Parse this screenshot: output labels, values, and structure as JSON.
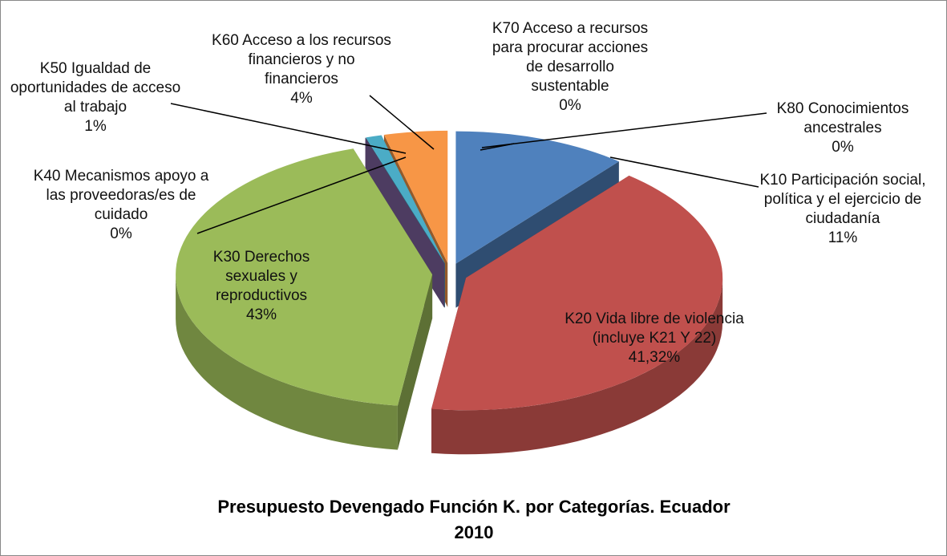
{
  "chart_data": {
    "type": "pie3d",
    "title": "Presupuesto Devengado Función K. por Categorías. Ecuador 2010",
    "categories": [
      "K10 Participación social,  política y el ejercicio de ciudadanía",
      "K20 Vida libre de violencia (incluye K21 Y 22)",
      "K30 Derechos sexuales y reproductivos",
      "K40 Mecanismos apoyo a las proveedoras/es de cuidado",
      "K50 Igualdad de oportunidades de acceso al trabajo",
      "K60 Acceso a los recursos financieros y no financieros",
      "K70 Acceso a recursos para procurar acciones de desarrollo sustentable",
      "K80 Conocimientos ancestrales"
    ],
    "values": [
      11,
      41.32,
      43,
      0,
      1,
      4,
      0,
      0
    ],
    "value_labels": [
      "11%",
      "41,32%",
      "43%",
      "0%",
      "1%",
      "4%",
      "0%",
      "0%"
    ],
    "colors": [
      "#4f81bd",
      "#c0504d",
      "#9bbb59",
      "#8064a2",
      "#4bacc6",
      "#f79646",
      "#2c4d75",
      "#772c2a"
    ]
  }
}
